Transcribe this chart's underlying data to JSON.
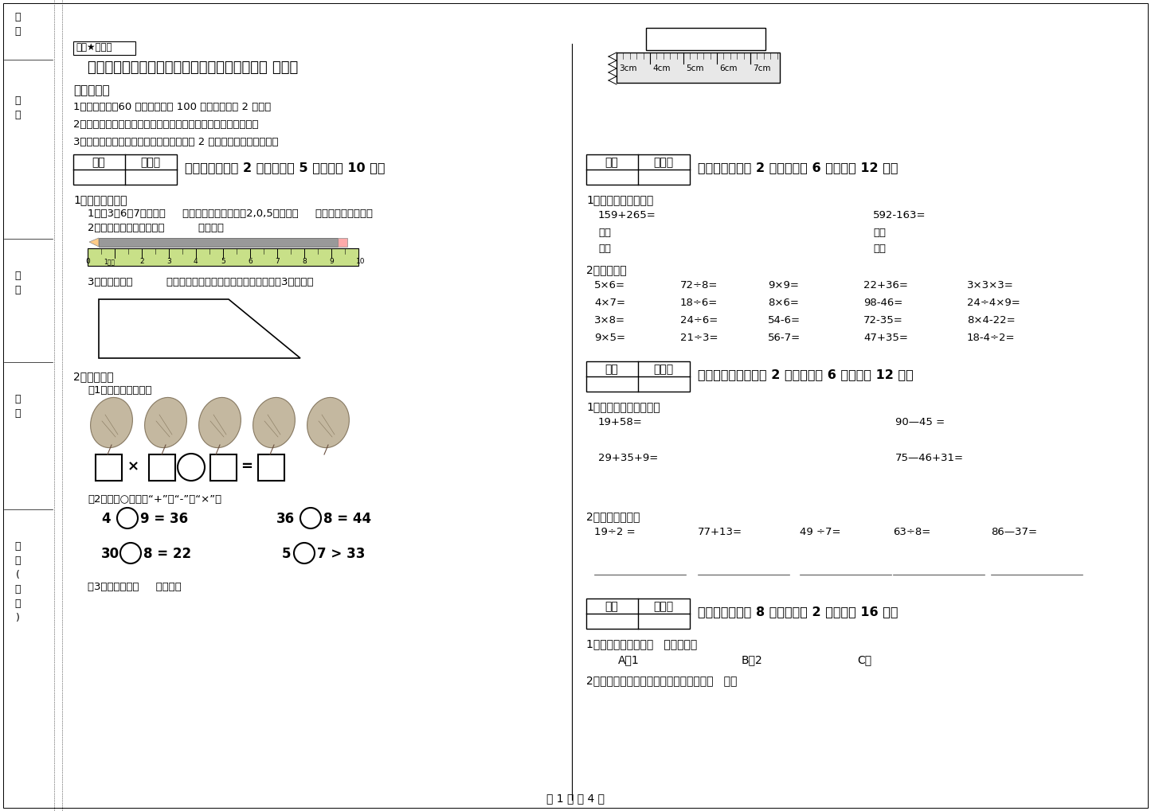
{
  "bg_color": "#ffffff",
  "page_label": "第 1 页 共 4 页",
  "secret_label": "绝密★启用前",
  "title": "河南省实验小学二年级数学下学期期中考试试卷 含答案",
  "notice_title": "考试需知：",
  "notice_items": [
    "1、考试时间：60 分钟，满分为 100 分（含卷面分 2 分）。",
    "2、请首先按要求在试卷的指定位置填写您的姓名、班级、学号。",
    "3、不要在试卷上乱写乱画，卷面不整洁才 2 分，密封线外请勿作答。"
  ],
  "section1_header": "一、填空题（共 2 大题，每题 5 分，共计 10 分）",
  "s1q1_title": "1、认真填一填。",
  "s1q1_1": "1、用3、6、7能摆出（     ）个不同的两位数，用2,0,5可组成（     ）个不同的两位数。",
  "s1q1_2": "2、看一看，这支铅笔长（          ）厘米。",
  "s1q1_3": "3、下图里有（          ）个角，在图形里加一条线段，使它增加3个直角。",
  "s1q2_title": "2、填一填。",
  "s1q2_1": "（1）、看图填算式：",
  "s1q2_2": "（2）、在○里填上“+”、“-”或“×”。",
  "s1q2_3": "（3）、纸条长（     ）厘米。",
  "section2_header": "二、计算题（共 2 大题，每题 6 分，共计 12 分）",
  "s2q1_title": "1、请估一估再计算。",
  "s2q1_a": "159+265=",
  "s2q1_b": "592-163=",
  "s2q2_title": "2、口算题。",
  "s2q2_rows": [
    [
      "5×6=",
      "72÷8=",
      "9×9=",
      "22+36=",
      "3×3×3="
    ],
    [
      "4×7=",
      "18÷6=",
      "8×6=",
      "98-46=",
      "24÷4×9="
    ],
    [
      "3×8=",
      "24÷6=",
      "54-6=",
      "72-35=",
      "8×4-22="
    ],
    [
      "9×5=",
      "21÷3=",
      "56-7=",
      "47+35=",
      "18-4÷2="
    ]
  ],
  "section3_header": "三、列竖式计算（共 2 大题，每题 6 分，共计 12 分）",
  "s3q1_title": "1、列式笔算下面各题。",
  "s3q1_a": "19+58=",
  "s3q1_b": "90—45 =",
  "s3q1_c": "29+35+9=",
  "s3q1_d": "75—46+31=",
  "s3q2_title": "2、用竖式计算。",
  "s3q2_items": [
    "19÷2 =",
    "77+13=",
    "49 ÷7=",
    "63÷8=",
    "86—37="
  ],
  "section4_header": "四、选一选（共 8 小题，每题 2 分，共计 16 分）",
  "s4q1": "1、一个三角板上有（   ）个直角。",
  "s4q1_opts": [
    "A、1",
    "B、2",
    "C、"
  ],
  "s4q2": "2、除数是一位数的除法中，余数最大是（   ）。",
  "ruler_right_labels": [
    "3cm",
    "4cm",
    "5cm",
    "6cm",
    "7cm"
  ]
}
